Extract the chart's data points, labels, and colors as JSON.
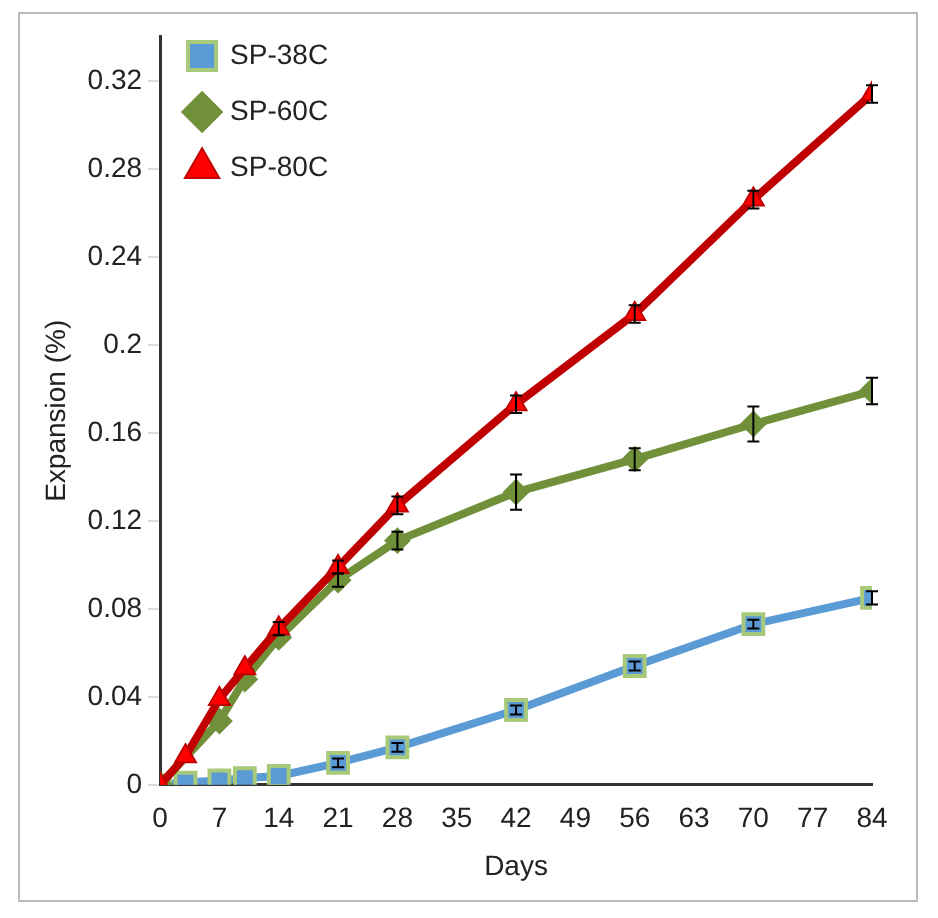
{
  "chart_data": {
    "type": "line",
    "xlabel": "Days",
    "ylabel": "Expansion (%)",
    "x": [
      0,
      3,
      7,
      10,
      14,
      21,
      28,
      42,
      56,
      70,
      84
    ],
    "xlim": [
      0,
      84
    ],
    "xticks": [
      0,
      7,
      14,
      21,
      28,
      35,
      42,
      49,
      56,
      63,
      70,
      77,
      84
    ],
    "ylim": [
      0,
      0.34
    ],
    "yticks": [
      0,
      0.04,
      0.08,
      0.12,
      0.16,
      0.2,
      0.24,
      0.28,
      0.32
    ],
    "grid": false,
    "legend": "top left",
    "line_style": "solid",
    "series": [
      {
        "name": "SP-38C",
        "color": "#5b9bd5",
        "marker": "square",
        "values": [
          0,
          0.001,
          0.002,
          0.003,
          0.004,
          0.01,
          0.017,
          0.034,
          0.054,
          0.073,
          0.085
        ],
        "errors": [
          null,
          null,
          null,
          null,
          null,
          0.002,
          0.002,
          0.002,
          0.002,
          0.002,
          0.003
        ]
      },
      {
        "name": "SP-60C",
        "color": "#70903a",
        "marker": "diamond",
        "values": [
          0,
          null,
          0.029,
          0.048,
          0.067,
          0.093,
          0.111,
          0.133,
          0.148,
          0.164,
          0.179
        ],
        "errors": [
          null,
          null,
          null,
          null,
          null,
          0.003,
          0.004,
          0.008,
          0.005,
          0.008,
          0.006
        ]
      },
      {
        "name": "SP-80C",
        "color": "#c00000",
        "marker": "triangle",
        "values": [
          0,
          0.013,
          0.039,
          0.053,
          0.071,
          0.099,
          0.127,
          0.173,
          0.214,
          0.266,
          0.314
        ],
        "errors": [
          null,
          null,
          null,
          null,
          0.003,
          0.003,
          0.004,
          0.004,
          0.004,
          0.004,
          0.004
        ]
      }
    ]
  }
}
